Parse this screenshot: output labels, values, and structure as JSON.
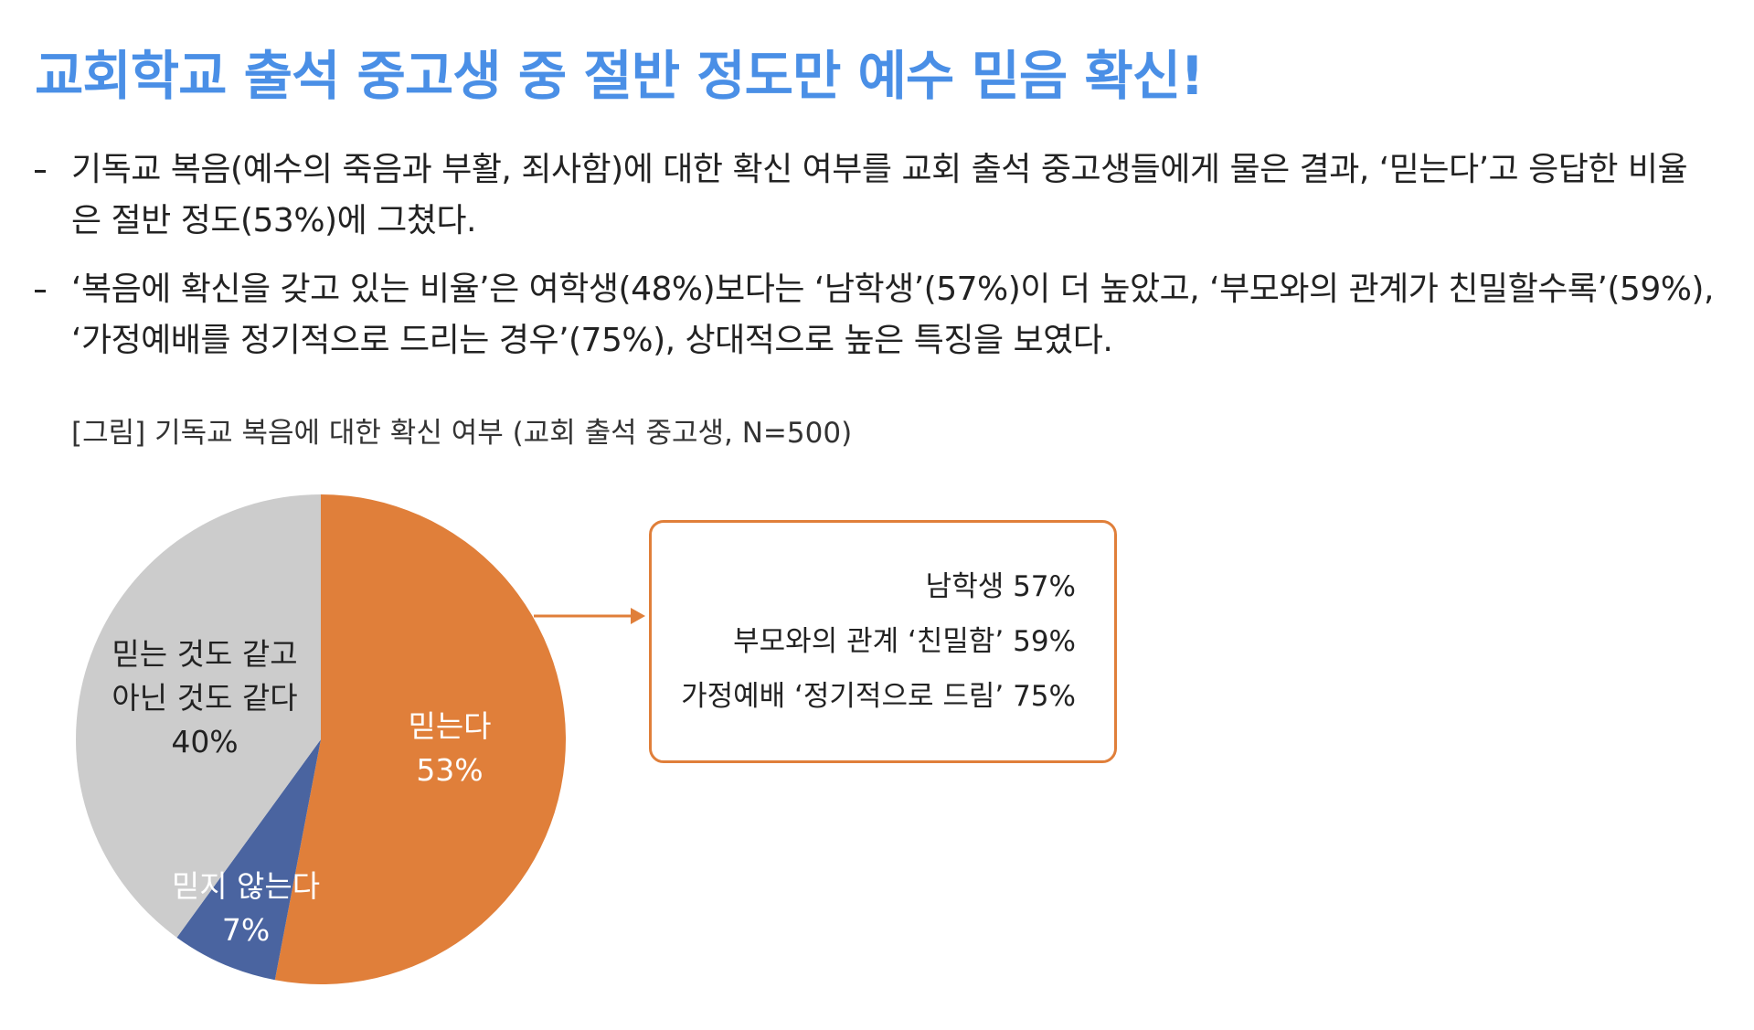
{
  "title": "교회학교 출석 중고생 중 절반 정도만 예수 믿음 확신!",
  "bullets": [
    "기독교 복음(예수의 죽음과 부활, 죄사함)에 대한 확신 여부를 교회 출석 중고생들에게 물은 결과, ‘믿는다’고 응답한 비율은 절반 정도(53%)에 그쳤다.",
    "‘복음에 확신을 갖고 있는 비율’은 여학생(48%)보다는 ‘남학생’(57%)이 더 높았고, ‘부모와의 관계가 친밀할수록’(59%), ‘가정예배를 정기적으로 드리는 경우’(75%), 상대적으로 높은 특징을 보였다."
  ],
  "caption": "[그림] 기독교 복음에 대한 확신 여부 (교회 출석 중고생, N=500)",
  "callout": [
    "남학생 57%",
    "부모와의 관계 ‘친밀함’ 59%",
    "가정예배 ‘정기적으로 드림’ 75%"
  ],
  "chart_data": {
    "type": "pie",
    "categories": [
      "믿는다",
      "믿지 않는다",
      "믿는 것도 같고\n아닌 것도 같다"
    ],
    "values": [
      53,
      7,
      40
    ],
    "value_labels": [
      "53%",
      "7%",
      "40%"
    ],
    "colors": [
      "#e07f3a",
      "#4a64a0",
      "#cccccc"
    ]
  }
}
